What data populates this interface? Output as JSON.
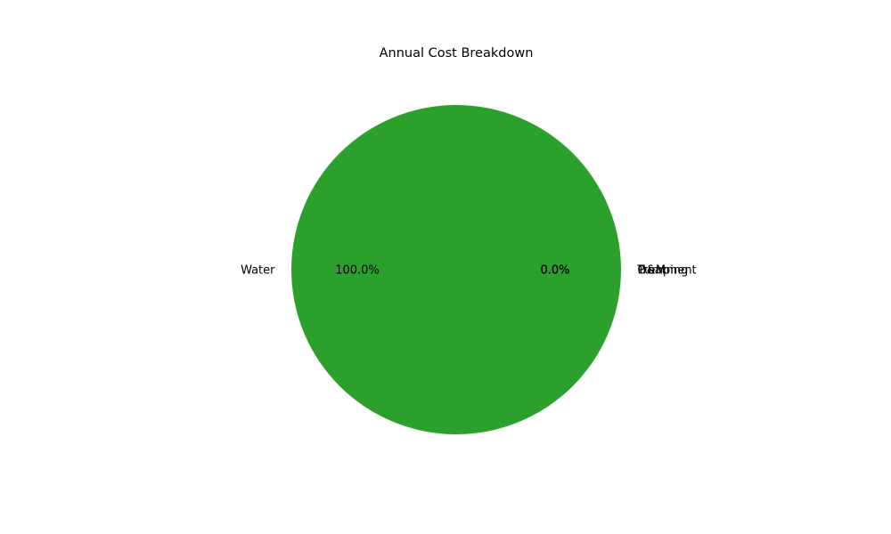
{
  "chart_data": {
    "type": "pie",
    "title": "Annual Cost Breakdown",
    "slices": [
      {
        "label": "Water",
        "value": 100.0,
        "pct_label": "100.0%",
        "color": "#2ca02c"
      },
      {
        "label": "Pumping",
        "value": 0.0,
        "pct_label": "0.0%",
        "color": "#1f77b4"
      },
      {
        "label": "Treatment",
        "value": 0.0,
        "pct_label": "0.0%",
        "color": "#ff7f0e"
      },
      {
        "label": "O&M",
        "value": 0.0,
        "pct_label": "0.0%",
        "color": "#d62728"
      }
    ]
  }
}
